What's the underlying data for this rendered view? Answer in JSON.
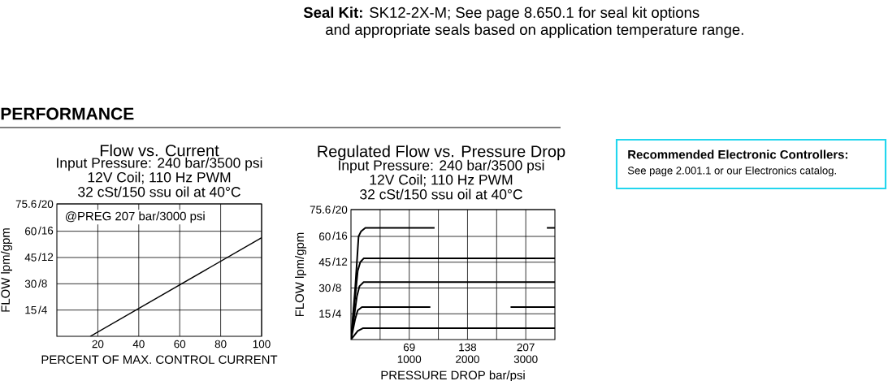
{
  "chart_data": [
    {
      "type": "other",
      "title": "PERFORMANCE",
      "annotations": [
        "**Seal Kit:** SK12-2X-M; See page 8.650.1 for seal kit options",
        "and appropriate seals based on application temperature range."
      ]
    },
    {
      "type": "line",
      "title": "Flow vs. Current",
      "subtitle": "Input Pressure: 240 bar/3500 psi",
      "annotations": [
        "12V Coil; 110 Hz PWM",
        "32 cSt/150 ssu oil at 40°C",
        "@PREG 207 bar/3000 psi"
      ],
      "xlabel": "PERCENT OF MAX. CONTROL CURRENT",
      "ylabel": "FLOW lpm/gpm",
      "xlim": [
        0,
        100
      ],
      "ylim": [
        0,
        75.6
      ],
      "xticks": [
        20,
        40,
        60,
        80,
        100
      ],
      "yticks": [
        15,
        30,
        45,
        60,
        75.6
      ],
      "y2lim": [
        0,
        20
      ],
      "y2ticks": [
        {
          "value": 4,
          "label": "/4"
        },
        {
          "value": 8,
          "label": "/8"
        },
        {
          "value": 12,
          "label": "/12"
        },
        {
          "value": 16,
          "label": "/16"
        },
        {
          "value": 20,
          "label": "/20"
        }
      ],
      "grid": true,
      "series": [
        {
          "color": "#000000",
          "x": [
            16.3,
            100
          ],
          "values": [
            0,
            56.3
          ]
        }
      ]
    },
    {
      "type": "line",
      "title": "Regulated Flow vs. Pressure Drop",
      "subtitle": "Input Pressure: 240 bar/3500 psi",
      "annotations": [
        "12V Coil; 110 Hz PWM",
        "32 cSt/150 ssu oil at 40°C"
      ],
      "xlabel": "PRESSURE DROP bar/psi",
      "ylabel": "FLOW lpm/gpm",
      "xlim": [
        0,
        241.5
      ],
      "ylim": [
        0,
        75.6
      ],
      "xticks": [
        {
          "value": 34.5,
          "label": null
        },
        69,
        {
          "value": 103.5,
          "label": null
        },
        138,
        {
          "value": 172.5,
          "label": null
        },
        207
      ],
      "x2lim": [
        0,
        3500
      ],
      "x2ticks": [
        1000,
        2000,
        3000
      ],
      "yticks": [
        15,
        30,
        45,
        60,
        75.6
      ],
      "y2lim": [
        0,
        20
      ],
      "y2ticks": [
        {
          "value": 4,
          "label": "/4"
        },
        {
          "value": 8,
          "label": "/8"
        },
        {
          "value": 12,
          "label": "/12"
        },
        {
          "value": 16,
          "label": "/16"
        },
        {
          "value": 20,
          "label": "/20"
        }
      ],
      "grid": true,
      "series": [
        {
          "color": "#000000",
          "x": [
            0,
            5,
            9,
            12,
            17,
            99,
            120,
            232,
            241.5
          ],
          "values": [
            0,
            30,
            60,
            63,
            65,
            65,
            null,
            65,
            65
          ]
        },
        {
          "color": "#000000",
          "x": [
            0,
            8,
            11,
            15,
            241.5
          ],
          "values": [
            0,
            40,
            45,
            47.2,
            47.2
          ]
        },
        {
          "color": "#000000",
          "x": [
            0,
            7,
            10,
            15,
            241.5
          ],
          "values": [
            0,
            25,
            31,
            33.4,
            33.4
          ]
        },
        {
          "color": "#000000",
          "x": [
            0,
            5,
            8,
            13,
            94,
            140,
            189,
            241.5
          ],
          "values": [
            0,
            12,
            17,
            18.9,
            18.9,
            null,
            18.9,
            18.9
          ]
        },
        {
          "color": "#000000",
          "x": [
            0,
            8,
            14,
            241.5
          ],
          "values": [
            0,
            5,
            6.6,
            6.6
          ]
        }
      ]
    },
    {
      "type": "other",
      "title": "Recommended Electronic Controllers:",
      "annotations": [
        "See page 2.001.1 or our Electronics catalog."
      ]
    }
  ]
}
